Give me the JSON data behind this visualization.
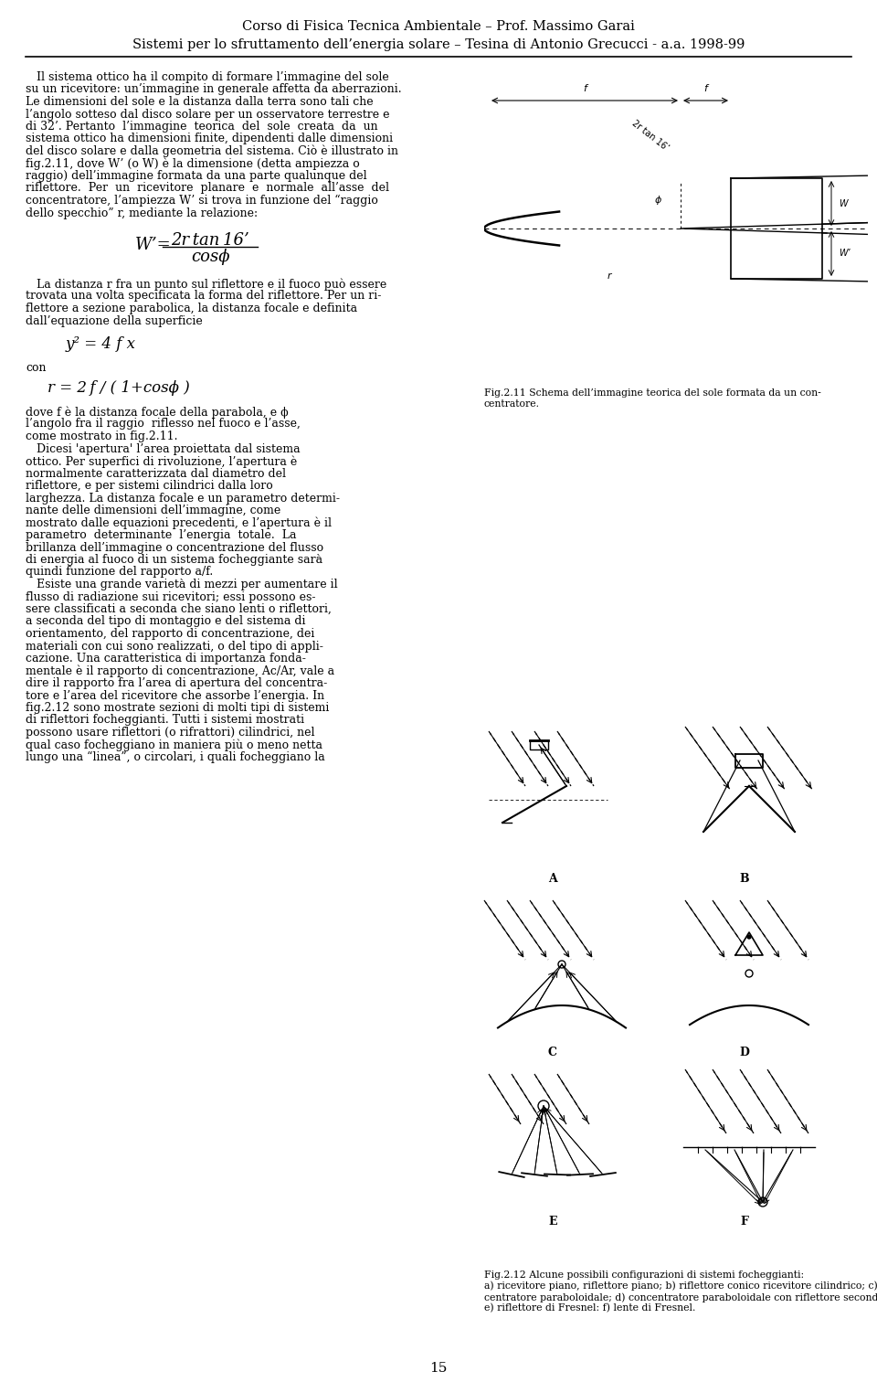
{
  "title_line1": "Corso di Fisica Tecnica Ambientale – Prof. Massimo Garai",
  "title_line2": "Sistemi per lo sfruttamento dell’energia solare – Tesina di Antonio Grecucci - a.a. 1998-99",
  "page_number": "15",
  "body_text": [
    "   Il sistema ottico ha il compito di formare l’immagine del sole su un ricevitore:",
    "un’immagine in generale affetta da aberrazioni. Le dimensioni del sole e la distanza",
    "dalla terra sono tali che l’angolo sotteso dal disco solare per un osservatore terrestre e",
    "di 32’. Pertanto  l’immagine  teorica  del  sole  creata  da  un sistema ottico ha",
    "dimensioni finite, dipendenti dalle dimensioni del disco solare e dalla geometria del",
    "sistema. Ciò è illustrato in fig.2.11, dove W’ (o W) è la dimensione (detta ampiezza o",
    "raggio) dell’immagine formata da una parte qualunque del riflettore.  Per  un",
    "ricevitore  planare  e  normale  all’asse  del concentratore, l’ampiezza W’ si trova in",
    "funzione del “raggio dello specchio” r, mediante la relazione:"
  ],
  "body_text2_a": "   La distanza r fra un punto sul riflettore e il fuoco può essere trovata una volta",
  "body_text2_b": "specificata la forma del riflettore.  Per un ri-",
  "body_text2_c": "flettore a sezione parabolica, la distanza focale e definita dall’equazione della superficie",
  "body_text3": [
    "dove f è la distanza focale della parabola, e ϕ",
    "l’angolo fra il raggio  riflesso nel fuoco e l’asse,",
    "come mostrato in fig.2.11.",
    "   Dicesi 'apertura' l’area proiettata dal sistema",
    "ottico. Per superfici di rivoluzione, l’apertura è",
    "normalmente caratterizzata dal diametro del",
    "riflettore, e per sistemi cilindrici dalla loro",
    "larghezza. La distanza focale e un parametro determi-",
    "nante delle dimensioni dell’immagine, come",
    "mostrato dalle equazioni precedenti, e l’apertura è il",
    "parametro  determinante  l’energia  totale.  La",
    "brillanza dell’immagine o concentrazione del flusso",
    "di energia al fuoco di un sistema focheggiante sarà",
    "quindi funzione del rapporto a/f.",
    "   Esiste una grande varietà di mezzi per aumentare il",
    "flusso di radiazione sui ricevitori; essi possono es-",
    "sere classificati a seconda che siano lenti o riflettori,",
    "a seconda del tipo di montaggio e del sistema di",
    "orientamento, del rapporto di concentrazione, dei",
    "materiali con cui sono realizzati, o del tipo di appli-",
    "cazione. Una caratteristica di importanza fonda-",
    "mentale è il rapporto di concentrazione, Ac/Ar, vale a",
    "dire il rapporto fra l’area di apertura del concentra-",
    "tore e l’area del ricevitore che assorbe l’energia. In",
    "fig.2.12 sono mostrate sezioni di molti tipi di sistemi",
    "di riflettori focheggianti. Tutti i sistemi mostrati",
    "possono usare riflettori (o rifrattori) cilindrici, nel",
    "qual caso focheggiano in maniera più o meno netta",
    "lungo una “linea”, o circolari, i quali focheggiano la"
  ],
  "fig211_caption": "Fig.2.11 Schema dell’immagine teorica del sole formata da un con-\ncentratore.",
  "fig212_caption": "Fig.2.12 Alcune possibili configurazioni di sistemi focheggianti:\na) ricevitore piano, riflettore piano; b) riflettore conico ricevitore cilindrico; c) con-\ncentratore paraboloidale; d) concentratore paraboloidale con riflettore secondario;\ne) riflettore di Fresnel: f) lente di Fresnel.",
  "bg_color": "#ffffff",
  "text_color": "#000000",
  "font_size_title": 10.5,
  "font_size_body": 9.0,
  "font_size_caption": 7.8,
  "font_size_formula": 12
}
